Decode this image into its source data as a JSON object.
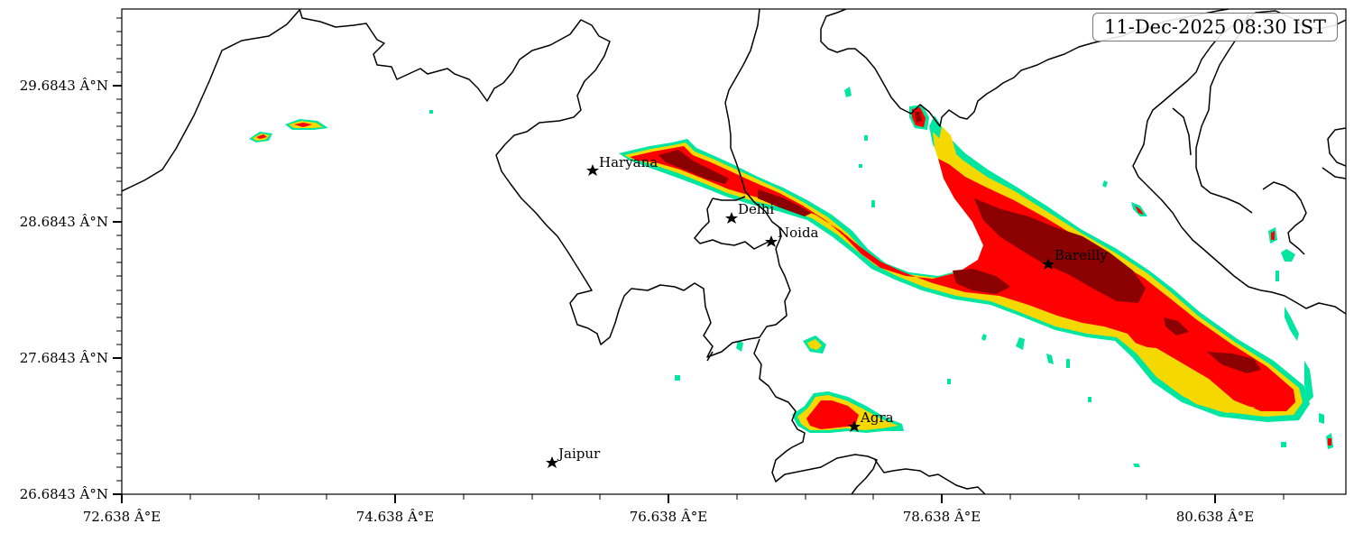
{
  "map": {
    "timestamp": "11-Dec-2025 08:30 IST",
    "lat_ticks": [
      "29.6843 Â°N",
      "28.6843 Â°N",
      "27.6843 Â°N",
      "26.6843 Â°N"
    ],
    "lon_ticks": [
      "72.638 Â°E",
      "74.638 Â°E",
      "76.638 Â°E",
      "78.638 Â°E",
      "80.638 Â°E"
    ],
    "cities": [
      {
        "name": "Haryana"
      },
      {
        "name": "Delhi"
      },
      {
        "name": "Noida"
      },
      {
        "name": "Bareilly"
      },
      {
        "name": "Agra"
      },
      {
        "name": "Jaipur"
      }
    ],
    "colors": {
      "level_low": "#00e5a0",
      "level_medium": "#f5d800",
      "level_high": "#ff0000",
      "level_severe": "#8b0000",
      "border": "#000000"
    }
  }
}
